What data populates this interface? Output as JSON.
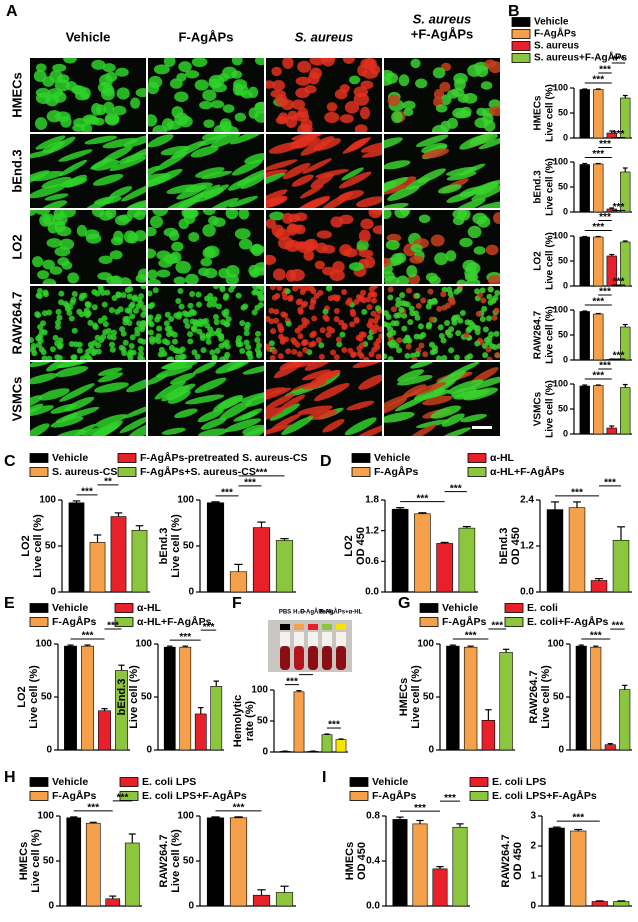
{
  "panel_a": {
    "panel": "A",
    "columns": [
      [
        "Vehicle"
      ],
      [
        "F-AgÅPs"
      ],
      [
        "S. aureus"
      ],
      [
        "S. aureus",
        "+F-AgÅPs"
      ]
    ],
    "rows": [
      "HMECs",
      "bEnd.3",
      "LO2",
      "RAW264.7",
      "VSMCs"
    ]
  },
  "chart_data": [
    {
      "type": "bar",
      "panel": "B",
      "series": [
        {
          "name": "Vehicle",
          "color": "#000000"
        },
        {
          "name": "F-AgÅPs",
          "color": "#f5a04a"
        },
        {
          "name": "S. aureus",
          "color": "#e8202a"
        },
        {
          "name": "S. aureus+F-AgÅPs",
          "color": "#8cc63f"
        }
      ],
      "subplots": [
        {
          "ylabel": [
            "HMECs",
            "Live cell (%)"
          ],
          "values": [
            97,
            97,
            10,
            80
          ],
          "errors": [
            1,
            1,
            4,
            5
          ],
          "ylim": [
            0,
            100
          ],
          "yticks": [
            0,
            50,
            100
          ],
          "annotations": [
            {
              "text": "***",
              "between": [
                0,
                2
              ]
            },
            {
              "text": "***",
              "between": [
                1,
                2
              ]
            },
            {
              "text": "***",
              "between": [
                2,
                3
              ]
            }
          ]
        },
        {
          "ylabel": [
            "bEnd.3",
            "Live cell (%)"
          ],
          "values": [
            95,
            96,
            6,
            80
          ],
          "errors": [
            2,
            1,
            2,
            8
          ],
          "ylim": [
            0,
            100
          ],
          "yticks": [
            0,
            50,
            100
          ],
          "annotations": [
            {
              "text": "***",
              "between": [
                0,
                2
              ]
            },
            {
              "text": "***",
              "between": [
                1,
                2
              ]
            },
            {
              "text": "***",
              "between": [
                2,
                3
              ]
            }
          ]
        },
        {
          "ylabel": [
            "LO2",
            "Live cell (%)"
          ],
          "values": [
            98,
            98,
            60,
            88
          ],
          "errors": [
            1,
            1,
            3,
            2
          ],
          "ylim": [
            0,
            100
          ],
          "yticks": [
            0,
            50,
            100
          ],
          "annotations": [
            {
              "text": "***",
              "between": [
                0,
                2
              ]
            },
            {
              "text": "***",
              "between": [
                1,
                2
              ]
            },
            {
              "text": "***",
              "between": [
                2,
                3
              ]
            }
          ]
        },
        {
          "ylabel": [
            "RAW264.7",
            "Live cell (%)"
          ],
          "values": [
            97,
            92,
            1,
            66
          ],
          "errors": [
            1,
            1,
            1,
            5
          ],
          "ylim": [
            0,
            100
          ],
          "yticks": [
            0,
            50,
            100
          ],
          "annotations": [
            {
              "text": "***",
              "between": [
                0,
                2
              ]
            },
            {
              "text": "***",
              "between": [
                1,
                2
              ]
            },
            {
              "text": "***",
              "between": [
                2,
                3
              ]
            }
          ]
        },
        {
          "ylabel": [
            "VSMCs",
            "Live cell (%)"
          ],
          "values": [
            96,
            97,
            12,
            93
          ],
          "errors": [
            2,
            1,
            4,
            6
          ],
          "ylim": [
            0,
            100
          ],
          "yticks": [
            0,
            50,
            100
          ],
          "annotations": [
            {
              "text": "***",
              "between": [
                0,
                2
              ]
            },
            {
              "text": "***",
              "between": [
                1,
                2
              ]
            },
            {
              "text": "***",
              "between": [
                2,
                3
              ]
            }
          ]
        }
      ]
    },
    {
      "type": "bar",
      "panel": "C",
      "series": [
        {
          "name": "Vehicle",
          "color": "#000000"
        },
        {
          "name": "S. aureus-CS",
          "color": "#f5a04a"
        },
        {
          "name": "F-AgÅPs-pretreated S. aureus-CS",
          "color": "#e8202a"
        },
        {
          "name": "F-AgÅPs+S. aureus-CS",
          "color": "#8cc63f"
        }
      ],
      "subplots": [
        {
          "ylabel": [
            "LO2",
            "Live cell (%)"
          ],
          "values": [
            97,
            54,
            82,
            67
          ],
          "errors": [
            2,
            8,
            4,
            5
          ],
          "ylim": [
            0,
            100
          ],
          "yticks": [
            0,
            50,
            100
          ],
          "annotations": [
            {
              "text": "***",
              "between": [
                0,
                1
              ]
            },
            {
              "text": "**",
              "between": [
                1,
                2
              ]
            }
          ]
        },
        {
          "ylabel": [
            "bEnd.3",
            "Live cell (%)"
          ],
          "values": [
            97,
            22,
            70,
            56
          ],
          "errors": [
            1,
            8,
            6,
            2
          ],
          "ylim": [
            0,
            100
          ],
          "yticks": [
            0,
            50,
            100
          ],
          "annotations": [
            {
              "text": "***",
              "between": [
                0,
                1
              ]
            },
            {
              "text": "***",
              "between": [
                1,
                2
              ]
            },
            {
              "text": "***",
              "between": [
                1,
                3
              ]
            }
          ]
        }
      ]
    },
    {
      "type": "bar",
      "panel": "D",
      "series": [
        {
          "name": "Vehicle",
          "color": "#000000"
        },
        {
          "name": "F-AgÅPs",
          "color": "#f5a04a"
        },
        {
          "name": "α-HL",
          "color": "#e8202a"
        },
        {
          "name": "α-HL+F-AgÅPs",
          "color": "#8cc63f"
        }
      ],
      "subplots": [
        {
          "ylabel": [
            "LO2",
            "OD 450"
          ],
          "values": [
            1.62,
            1.53,
            0.95,
            1.25
          ],
          "errors": [
            0.03,
            0.02,
            0.02,
            0.03
          ],
          "ylim": [
            0,
            1.8
          ],
          "yticks": [
            {
              "value": 0,
              "label": "0.0"
            },
            0.6,
            1.2,
            1.8
          ],
          "annotations": [
            {
              "text": "***",
              "between": [
                0,
                2
              ]
            },
            {
              "text": "***",
              "between": [
                2,
                3
              ]
            }
          ]
        },
        {
          "ylabel": [
            "bEnd.3",
            "OD 450"
          ],
          "values": [
            2.15,
            2.2,
            0.3,
            1.35
          ],
          "errors": [
            0.2,
            0.15,
            0.05,
            0.35
          ],
          "ylim": [
            0,
            2.4
          ],
          "yticks": [
            {
              "value": 0,
              "label": "0.0"
            },
            1.2,
            2.4
          ],
          "annotations": [
            {
              "text": "***",
              "between": [
                0,
                2
              ]
            },
            {
              "text": "***",
              "between": [
                2,
                3
              ]
            }
          ]
        }
      ]
    },
    {
      "type": "bar",
      "panel": "E",
      "series": [
        {
          "name": "Vehicle",
          "color": "#000000"
        },
        {
          "name": "F-AgÅPs",
          "color": "#f5a04a"
        },
        {
          "name": "α-HL",
          "color": "#e8202a"
        },
        {
          "name": "α-HL+F-AgÅPs",
          "color": "#8cc63f"
        }
      ],
      "subplots": [
        {
          "ylabel": [
            "LO2",
            "Live cell (%)"
          ],
          "values": [
            98,
            98,
            37,
            75
          ],
          "errors": [
            1,
            1,
            2,
            5
          ],
          "ylim": [
            0,
            100
          ],
          "yticks": [
            0,
            50,
            100
          ],
          "annotations": [
            {
              "text": "***",
              "between": [
                0,
                2
              ]
            },
            {
              "text": "***",
              "between": [
                2,
                3
              ]
            }
          ]
        },
        {
          "ylabel": [
            "bEnd.3",
            "Live cell (%)"
          ],
          "values": [
            97,
            97,
            34,
            60
          ],
          "errors": [
            1,
            1,
            6,
            5
          ],
          "ylim": [
            0,
            100
          ],
          "yticks": [
            0,
            50,
            100
          ],
          "annotations": [
            {
              "text": "***",
              "between": [
                0,
                2
              ]
            },
            {
              "text": "***",
              "between": [
                2,
                3
              ]
            }
          ]
        }
      ]
    },
    {
      "type": "bar",
      "panel": "F",
      "categories": [
        "PBS",
        "H₂O",
        "F-AgÅPs",
        "α-HL",
        "F-AgÅPs+α-HL"
      ],
      "colors": [
        "#000000",
        "#f5a04a",
        "#e8202a",
        "#8cc63f",
        "#f5e400"
      ],
      "subplots": [
        {
          "ylabel": [
            "Hemolytic",
            "rate (%)"
          ],
          "values": [
            1,
            97,
            1,
            28,
            20
          ],
          "errors": [
            0.5,
            2,
            0.5,
            1,
            1
          ],
          "ylim": [
            0,
            100
          ],
          "yticks": [
            0,
            50,
            100
          ],
          "annotations": [
            {
              "text": "***",
              "between": [
                0,
                1
              ]
            },
            {
              "text": "***",
              "between": [
                1,
                2
              ]
            },
            {
              "text": "***",
              "between": [
                3,
                4
              ]
            },
            {
              "text": "***",
              "between": [
                2,
                3
              ]
            },
            {
              "text": "***",
              "between": [
                2,
                4
              ]
            }
          ]
        }
      ]
    },
    {
      "type": "bar",
      "panel": "G",
      "series": [
        {
          "name": "Vehicle",
          "color": "#000000"
        },
        {
          "name": "F-AgÅPs",
          "color": "#f5a04a"
        },
        {
          "name": "E. coli",
          "color": "#e8202a"
        },
        {
          "name": "E. coli+F-AgÅPs",
          "color": "#8cc63f"
        }
      ],
      "subplots": [
        {
          "ylabel": [
            "HMECs",
            "Live cell (%)"
          ],
          "values": [
            98,
            97,
            28,
            92
          ],
          "errors": [
            1,
            1,
            10,
            3
          ],
          "ylim": [
            0,
            100
          ],
          "yticks": [
            0,
            50,
            100
          ],
          "annotations": [
            {
              "text": "***",
              "between": [
                0,
                2
              ]
            },
            {
              "text": "***",
              "between": [
                2,
                3
              ]
            }
          ]
        },
        {
          "ylabel": [
            "RAW264.7",
            "Live cell (%)"
          ],
          "values": [
            98,
            97,
            5,
            57
          ],
          "errors": [
            1,
            1,
            1,
            4
          ],
          "ylim": [
            0,
            100
          ],
          "yticks": [
            0,
            50,
            100
          ],
          "annotations": [
            {
              "text": "***",
              "between": [
                0,
                2
              ]
            },
            {
              "text": "***",
              "between": [
                2,
                3
              ]
            }
          ]
        }
      ]
    },
    {
      "type": "bar",
      "panel": "H",
      "series": [
        {
          "name": "Vehicle",
          "color": "#000000"
        },
        {
          "name": "F-AgÅPs",
          "color": "#f5a04a"
        },
        {
          "name": "E. coli LPS",
          "color": "#e8202a"
        },
        {
          "name": "E. coli LPS+F-AgÅPs",
          "color": "#8cc63f"
        }
      ],
      "subplots": [
        {
          "ylabel": [
            "HMECs",
            "Live cell (%)"
          ],
          "values": [
            98,
            92,
            8,
            70
          ],
          "errors": [
            1,
            1,
            3,
            10
          ],
          "ylim": [
            0,
            100
          ],
          "yticks": [
            0,
            50,
            100
          ],
          "annotations": [
            {
              "text": "***",
              "between": [
                0,
                2
              ]
            },
            {
              "text": "***",
              "between": [
                2,
                3
              ]
            }
          ]
        },
        {
          "ylabel": [
            "RAW264.7",
            "Live cell (%)"
          ],
          "values": [
            98,
            98,
            12,
            15
          ],
          "errors": [
            1,
            1,
            6,
            7
          ],
          "ylim": [
            0,
            100
          ],
          "yticks": [
            0,
            50,
            100
          ],
          "annotations": [
            {
              "text": "***",
              "between": [
                0,
                2
              ]
            }
          ]
        }
      ]
    },
    {
      "type": "bar",
      "panel": "I",
      "series": [
        {
          "name": "Vehicle",
          "color": "#000000"
        },
        {
          "name": "F-AgÅPs",
          "color": "#f5a04a"
        },
        {
          "name": "E. coli LPS",
          "color": "#e8202a"
        },
        {
          "name": "E. coli LPS+F-AgÅPs",
          "color": "#8cc63f"
        }
      ],
      "subplots": [
        {
          "ylabel": [
            "HMECs",
            "OD 450"
          ],
          "values": [
            0.77,
            0.73,
            0.33,
            0.7
          ],
          "errors": [
            0.02,
            0.03,
            0.02,
            0.03
          ],
          "ylim": [
            0,
            0.8
          ],
          "yticks": [
            {
              "value": 0,
              "label": "0.0"
            },
            0.4,
            0.8
          ],
          "annotations": [
            {
              "text": "***",
              "between": [
                0,
                2
              ]
            },
            {
              "text": "***",
              "between": [
                2,
                3
              ]
            }
          ]
        },
        {
          "ylabel": [
            "RAW264.7",
            "OD 450"
          ],
          "values": [
            2.6,
            2.5,
            0.15,
            0.15
          ],
          "errors": [
            0.03,
            0.05,
            0.02,
            0.02
          ],
          "ylim": [
            0,
            3
          ],
          "yticks": [
            0,
            1,
            2,
            3
          ],
          "annotations": [
            {
              "text": "***",
              "between": [
                0,
                2
              ]
            }
          ]
        }
      ]
    }
  ]
}
